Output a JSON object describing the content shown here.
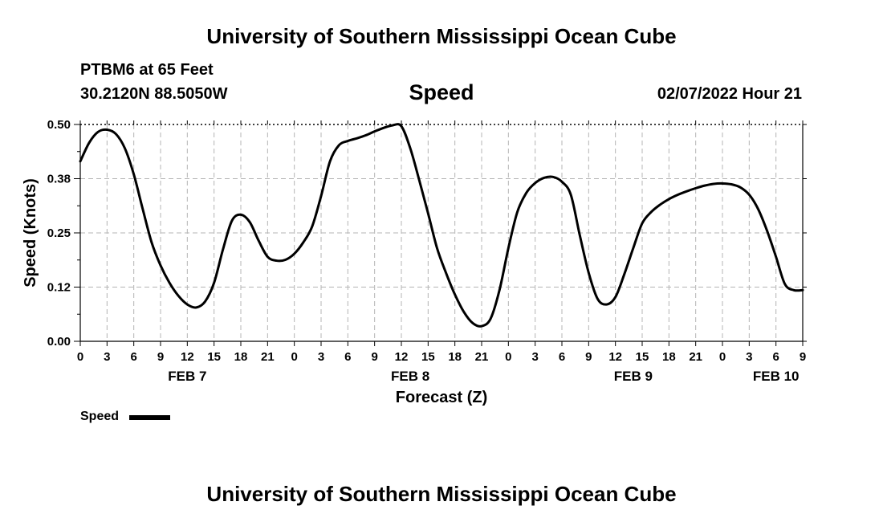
{
  "header": {
    "org_title": "University of Southern Mississippi Ocean Cube",
    "station": "PTBM6 at 65 Feet",
    "coordinates": "30.2120N  88.5050W",
    "timestamp": "02/07/2022 Hour 21"
  },
  "footer": {
    "org_title": "University of Southern Mississippi Ocean Cube"
  },
  "legend": {
    "label": "Speed"
  },
  "colors": {
    "line": "#000000",
    "grid": "#b4b4b4",
    "background": "#ffffff"
  },
  "chart_data": {
    "type": "line",
    "title": "Speed",
    "xlabel": "Forecast (Z)",
    "ylabel": "Speed (Knots)",
    "grid": true,
    "legend_position": "bottom-left",
    "xlim": [
      0,
      81
    ],
    "ylim": [
      0,
      0.5
    ],
    "y_ticks": [
      0,
      0.125,
      0.25,
      0.375,
      0.5
    ],
    "y_tick_labels": [
      "0.00",
      "0.12",
      "0.25",
      "0.38",
      "0.50"
    ],
    "x_ticks": [
      0,
      3,
      6,
      9,
      12,
      15,
      18,
      21,
      24,
      27,
      30,
      33,
      36,
      39,
      42,
      45,
      48,
      51,
      54,
      57,
      60,
      63,
      66,
      69,
      72,
      75,
      78,
      81
    ],
    "x_tick_labels": [
      "0",
      "3",
      "6",
      "9",
      "12",
      "15",
      "18",
      "21",
      "0",
      "3",
      "6",
      "9",
      "12",
      "15",
      "18",
      "21",
      "0",
      "3",
      "6",
      "9",
      "12",
      "15",
      "18",
      "21",
      "0",
      "3",
      "6",
      "9"
    ],
    "day_labels": [
      {
        "label": "FEB 7",
        "hour": 12
      },
      {
        "label": "FEB 8",
        "hour": 37
      },
      {
        "label": "FEB 9",
        "hour": 62
      },
      {
        "label": "FEB 10",
        "hour": 78
      }
    ],
    "series": [
      {
        "name": "Speed",
        "x": [
          0,
          1,
          2,
          3,
          4,
          5,
          6,
          7,
          8,
          9,
          10,
          11,
          12,
          13,
          14,
          15,
          16,
          17,
          18,
          19,
          20,
          21,
          22,
          23,
          24,
          25,
          26,
          27,
          28,
          29,
          30,
          31,
          32,
          33,
          34,
          35,
          36,
          37,
          38,
          39,
          40,
          41,
          42,
          43,
          44,
          45,
          46,
          47,
          48,
          49,
          50,
          51,
          52,
          53,
          54,
          55,
          56,
          57,
          58,
          59,
          60,
          61,
          62,
          63,
          64,
          65,
          66,
          67,
          68,
          69,
          70,
          71,
          72,
          73,
          74,
          75,
          76,
          77,
          78,
          79,
          80,
          81
        ],
        "values": [
          0.415,
          0.458,
          0.483,
          0.488,
          0.478,
          0.445,
          0.385,
          0.305,
          0.228,
          0.175,
          0.135,
          0.105,
          0.085,
          0.078,
          0.092,
          0.135,
          0.212,
          0.278,
          0.292,
          0.275,
          0.232,
          0.195,
          0.186,
          0.188,
          0.202,
          0.228,
          0.265,
          0.335,
          0.415,
          0.452,
          0.462,
          0.468,
          0.475,
          0.484,
          0.492,
          0.498,
          0.496,
          0.445,
          0.372,
          0.295,
          0.215,
          0.158,
          0.108,
          0.068,
          0.042,
          0.035,
          0.052,
          0.118,
          0.215,
          0.298,
          0.342,
          0.365,
          0.377,
          0.379,
          0.368,
          0.338,
          0.245,
          0.158,
          0.098,
          0.085,
          0.102,
          0.155,
          0.215,
          0.272,
          0.298,
          0.315,
          0.328,
          0.338,
          0.346,
          0.353,
          0.359,
          0.363,
          0.364,
          0.362,
          0.355,
          0.338,
          0.305,
          0.255,
          0.195,
          0.132,
          0.118,
          0.118
        ]
      }
    ]
  }
}
